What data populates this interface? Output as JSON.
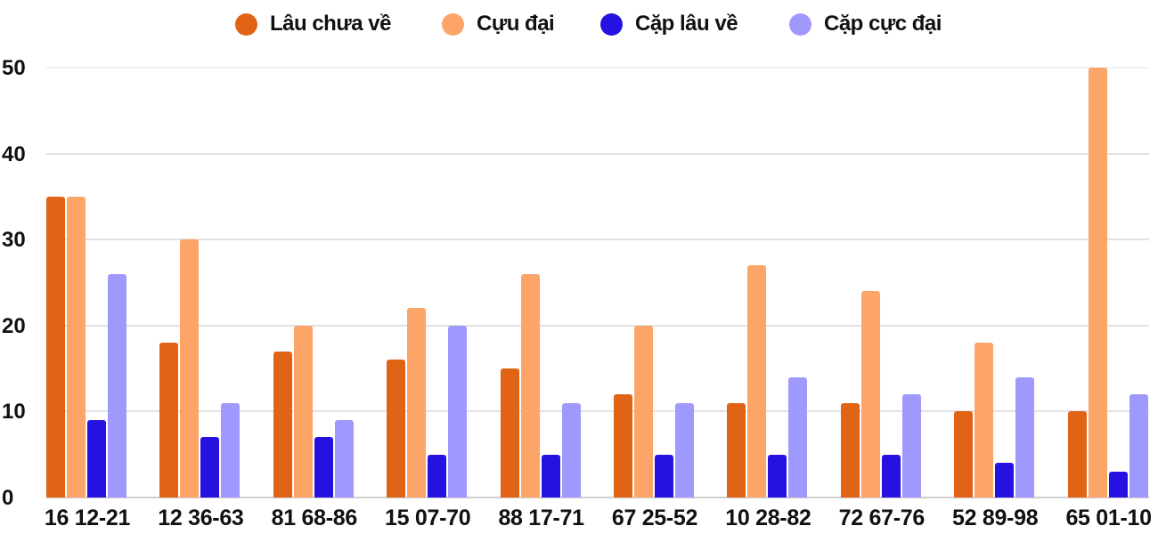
{
  "chart_data": {
    "type": "bar",
    "title": "",
    "xlabel": "",
    "ylabel": "",
    "ylim": [
      0,
      50
    ],
    "yticks": [
      0,
      10,
      20,
      30,
      40,
      50
    ],
    "grid": true,
    "legend_position": "top",
    "categories": [
      "16 12-21",
      "12 36-63",
      "81 68-86",
      "15 07-70",
      "88 17-71",
      "67 25-52",
      "10 28-82",
      "72 67-76",
      "52 89-98",
      "65 01-10"
    ],
    "series": [
      {
        "name": "Lâu chưa về",
        "color": "#e06316",
        "values": [
          35,
          18,
          17,
          16,
          15,
          12,
          11,
          11,
          10,
          10
        ]
      },
      {
        "name": "Cựu đại",
        "color": "#fda468",
        "values": [
          35,
          30,
          20,
          22,
          26,
          20,
          27,
          24,
          18,
          50
        ]
      },
      {
        "name": "Cặp lâu về",
        "color": "#2612e0",
        "values": [
          9,
          7,
          7,
          5,
          5,
          5,
          5,
          5,
          4,
          3
        ]
      },
      {
        "name": "Cặp cực đại",
        "color": "#a099fd",
        "values": [
          26,
          11,
          9,
          20,
          11,
          11,
          14,
          12,
          14,
          12
        ]
      }
    ]
  },
  "legend": {
    "items": [
      {
        "label": "Lâu chưa về",
        "color": "#e06316"
      },
      {
        "label": "Cựu đại",
        "color": "#fda468"
      },
      {
        "label": "Cặp lâu về",
        "color": "#2612e0"
      },
      {
        "label": "Cặp cực đại",
        "color": "#a099fd"
      }
    ]
  },
  "axis": {
    "y_labels": [
      "0",
      "10",
      "20",
      "30",
      "40",
      "50"
    ]
  }
}
